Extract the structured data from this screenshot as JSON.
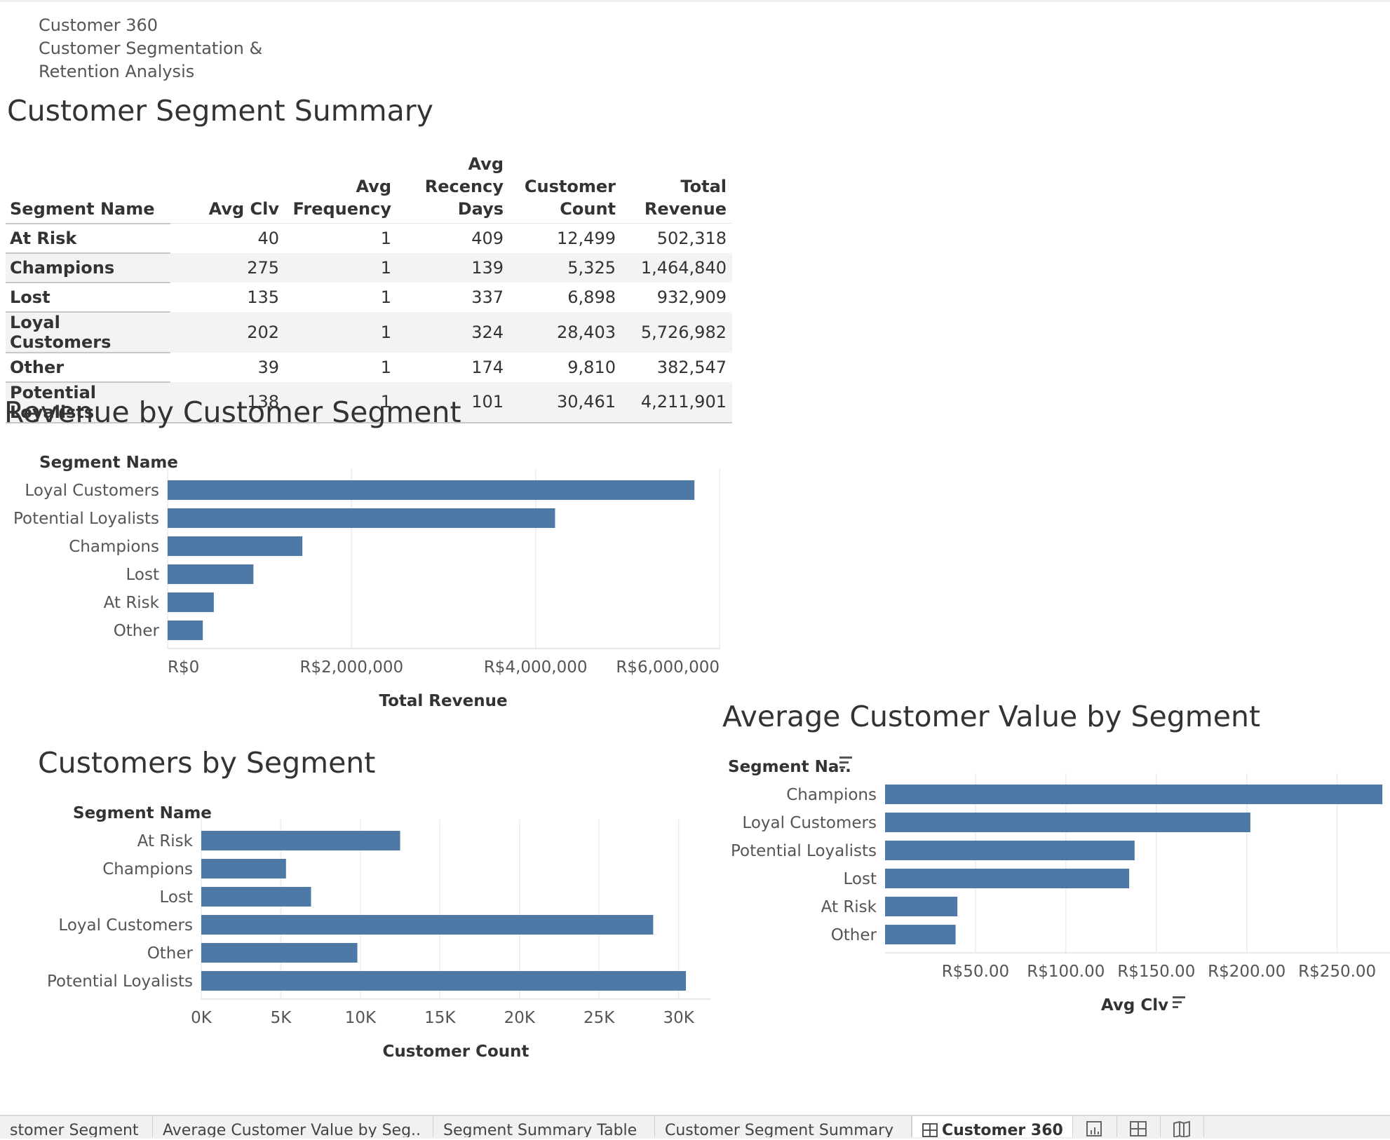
{
  "dashboard": {
    "title_line1": "Customer 360",
    "title_line2": "Customer Segmentation &",
    "title_line3": "Retention Analysis"
  },
  "summary": {
    "title": "Customer Segment Summary",
    "headers": {
      "segment": "Segment Name",
      "avg_clv": "Avg Clv",
      "avg_frequency_1": "Avg",
      "avg_frequency_2": "Frequency",
      "avg_recency_1": "Avg Recency",
      "avg_recency_2": "Days",
      "customer_count_1": "Customer",
      "customer_count_2": "Count",
      "total_revenue_1": "Total",
      "total_revenue_2": "Revenue"
    },
    "rows": [
      {
        "segment": "At Risk",
        "avg_clv": "40",
        "avg_frequency": "1",
        "avg_recency": "409",
        "customer_count": "12,499",
        "total_revenue": "502,318"
      },
      {
        "segment": "Champions",
        "avg_clv": "275",
        "avg_frequency": "1",
        "avg_recency": "139",
        "customer_count": "5,325",
        "total_revenue": "1,464,840"
      },
      {
        "segment": "Lost",
        "avg_clv": "135",
        "avg_frequency": "1",
        "avg_recency": "337",
        "customer_count": "6,898",
        "total_revenue": "932,909"
      },
      {
        "segment": "Loyal Customers",
        "avg_clv": "202",
        "avg_frequency": "1",
        "avg_recency": "324",
        "customer_count": "28,403",
        "total_revenue": "5,726,982"
      },
      {
        "segment": "Other",
        "avg_clv": "39",
        "avg_frequency": "1",
        "avg_recency": "174",
        "customer_count": "9,810",
        "total_revenue": "382,547"
      },
      {
        "segment": "Potential Loyalists",
        "avg_clv": "138",
        "avg_frequency": "1",
        "avg_recency": "101",
        "customer_count": "30,461",
        "total_revenue": "4,211,901"
      }
    ]
  },
  "chart_data": [
    {
      "id": "revenue",
      "type": "bar",
      "orientation": "horizontal",
      "title": "Revenue by Customer Segment",
      "category_header": "Segment Name",
      "xlabel": "Total Revenue",
      "categories": [
        "Loyal Customers",
        "Potential Loyalists",
        "Champions",
        "Lost",
        "At Risk",
        "Other"
      ],
      "values": [
        5726982,
        4211901,
        1464840,
        932909,
        502318,
        382547
      ],
      "xlim": [
        0,
        6000000
      ],
      "ticks": [
        0,
        2000000,
        4000000,
        6000000
      ],
      "tick_labels": [
        "R$0",
        "R$2,000,000",
        "R$4,000,000",
        "R$6,000,000"
      ],
      "bar_color": "#4e79a7",
      "grid": true
    },
    {
      "id": "customers",
      "type": "bar",
      "orientation": "horizontal",
      "title": "Customers by Segment",
      "category_header": "Segment Name",
      "xlabel": "Customer Count",
      "categories": [
        "At Risk",
        "Champions",
        "Lost",
        "Loyal Customers",
        "Other",
        "Potential Loyalists"
      ],
      "values": [
        12499,
        5325,
        6898,
        28403,
        9810,
        30461
      ],
      "xlim": [
        0,
        32000
      ],
      "ticks": [
        0,
        5000,
        10000,
        15000,
        20000,
        25000,
        30000
      ],
      "tick_labels": [
        "0K",
        "5K",
        "10K",
        "15K",
        "20K",
        "25K",
        "30K"
      ],
      "bar_color": "#4e79a7",
      "grid": true
    },
    {
      "id": "avgclv",
      "type": "bar",
      "orientation": "horizontal",
      "title": "Average Customer Value by Segment",
      "category_header": "Segment Na..",
      "xlabel": "Avg Clv",
      "categories": [
        "Champions",
        "Loyal Customers",
        "Potential Loyalists",
        "Lost",
        "At Risk",
        "Other"
      ],
      "values": [
        275,
        202,
        138,
        135,
        40,
        39
      ],
      "xlim": [
        0,
        280
      ],
      "ticks": [
        50,
        100,
        150,
        200,
        250
      ],
      "tick_labels": [
        "R$50.00",
        "R$100.00",
        "R$150.00",
        "R$200.00",
        "R$250.00"
      ],
      "bar_color": "#4e79a7",
      "grid": true,
      "sorted": true
    }
  ],
  "tabs": [
    {
      "label": "stomer Segment"
    },
    {
      "label": "Average Customer Value by Seg.."
    },
    {
      "label": "Segment Summary Table"
    },
    {
      "label": "Customer Segment Summary"
    },
    {
      "label": "Customer 360",
      "active": true
    }
  ],
  "icons": {
    "tab_dashboard": "dashboard-grid-icon",
    "new_worksheet": "new-worksheet-icon",
    "new_dashboard": "new-dashboard-icon",
    "new_story": "new-story-icon",
    "sort": "sort-descending-icon"
  }
}
